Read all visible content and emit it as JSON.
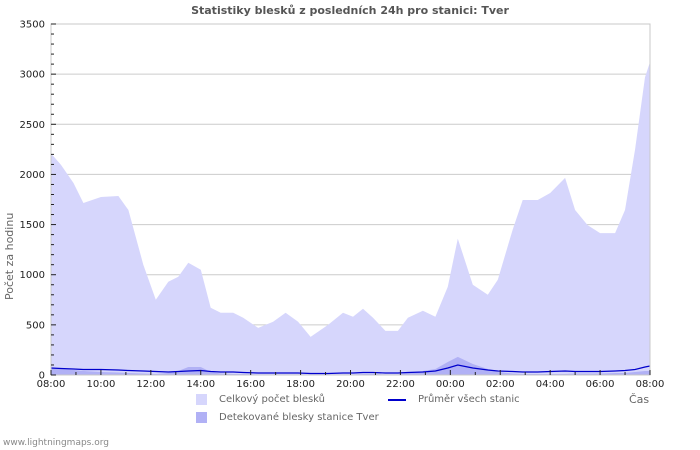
{
  "header": {
    "title": "Statistiky blesků z posledních 24h pro stanici: Tver"
  },
  "axes": {
    "ylabel": "Počet za hodinu",
    "xlabel": "Čas",
    "yticks": [
      "0",
      "500",
      "1000",
      "1500",
      "2000",
      "2500",
      "3000",
      "3500"
    ],
    "xticks": [
      "08:00",
      "10:00",
      "12:00",
      "14:00",
      "16:00",
      "18:00",
      "20:00",
      "22:00",
      "00:00",
      "02:00",
      "04:00",
      "06:00",
      "08:00"
    ]
  },
  "legend": {
    "total": "Celkový počet blesků",
    "station": "Detekované blesky stanice Tver",
    "average": "Průměr všech stanic"
  },
  "colors": {
    "total": "#d6d6fc",
    "station": "#b1b1f5",
    "average": "#0000cc",
    "grid": "#cccccc"
  },
  "footer": {
    "site": "www.lightningmaps.org"
  },
  "chart_data": {
    "type": "area",
    "title": "Statistiky blesků z posledních 24h pro stanici: Tver",
    "xlabel": "Čas",
    "ylabel": "Počet za hodinu",
    "ylim": [
      0,
      3500
    ],
    "grid": true,
    "legend_position": "bottom",
    "x_hours": [
      0,
      0.4,
      0.9,
      1.3,
      2.0,
      2.7,
      3.1,
      3.7,
      4.2,
      4.7,
      5.1,
      5.5,
      6.0,
      6.4,
      6.8,
      7.3,
      7.7,
      8.3,
      8.9,
      9.4,
      9.9,
      10.4,
      11.1,
      11.7,
      12.1,
      12.5,
      12.9,
      13.4,
      13.9,
      14.3,
      14.9,
      15.4,
      15.9,
      16.3,
      16.9,
      17.5,
      17.9,
      18.5,
      18.9,
      19.5,
      20.0,
      20.6,
      21.0,
      21.5,
      22.0,
      22.6,
      23.0,
      23.4,
      23.8,
      24.0
    ],
    "x_tick_labels": [
      "08:00",
      "10:00",
      "12:00",
      "14:00",
      "16:00",
      "18:00",
      "20:00",
      "22:00",
      "00:00",
      "02:00",
      "04:00",
      "06:00",
      "08:00"
    ],
    "series": [
      {
        "name": "Celkový počet blesků",
        "kind": "area",
        "values": [
          2210,
          2095,
          1915,
          1715,
          1775,
          1785,
          1645,
          1100,
          750,
          930,
          980,
          1120,
          1050,
          670,
          620,
          620,
          570,
          470,
          530,
          620,
          530,
          380,
          500,
          620,
          580,
          660,
          570,
          440,
          440,
          570,
          640,
          580,
          880,
          1360,
          900,
          800,
          950,
          1450,
          1745,
          1745,
          1815,
          1965,
          1645,
          1495,
          1415,
          1415,
          1645,
          2245,
          2970,
          3120
        ]
      },
      {
        "name": "Detekované blesky stanice Tver",
        "kind": "area",
        "values": [
          70,
          60,
          50,
          40,
          30,
          25,
          20,
          15,
          10,
          20,
          40,
          80,
          80,
          30,
          15,
          10,
          10,
          5,
          5,
          5,
          5,
          5,
          5,
          5,
          5,
          10,
          10,
          5,
          5,
          20,
          40,
          60,
          130,
          180,
          110,
          60,
          30,
          15,
          10,
          10,
          10,
          10,
          15,
          15,
          15,
          20,
          20,
          30,
          40,
          40
        ]
      },
      {
        "name": "Průměr všech stanic",
        "kind": "line",
        "values": [
          70,
          65,
          60,
          55,
          55,
          50,
          45,
          40,
          35,
          30,
          35,
          40,
          45,
          35,
          30,
          30,
          25,
          20,
          20,
          20,
          20,
          15,
          15,
          20,
          20,
          25,
          25,
          20,
          20,
          25,
          30,
          40,
          70,
          100,
          70,
          50,
          40,
          35,
          30,
          30,
          35,
          40,
          35,
          35,
          35,
          40,
          45,
          55,
          80,
          90
        ]
      }
    ]
  }
}
